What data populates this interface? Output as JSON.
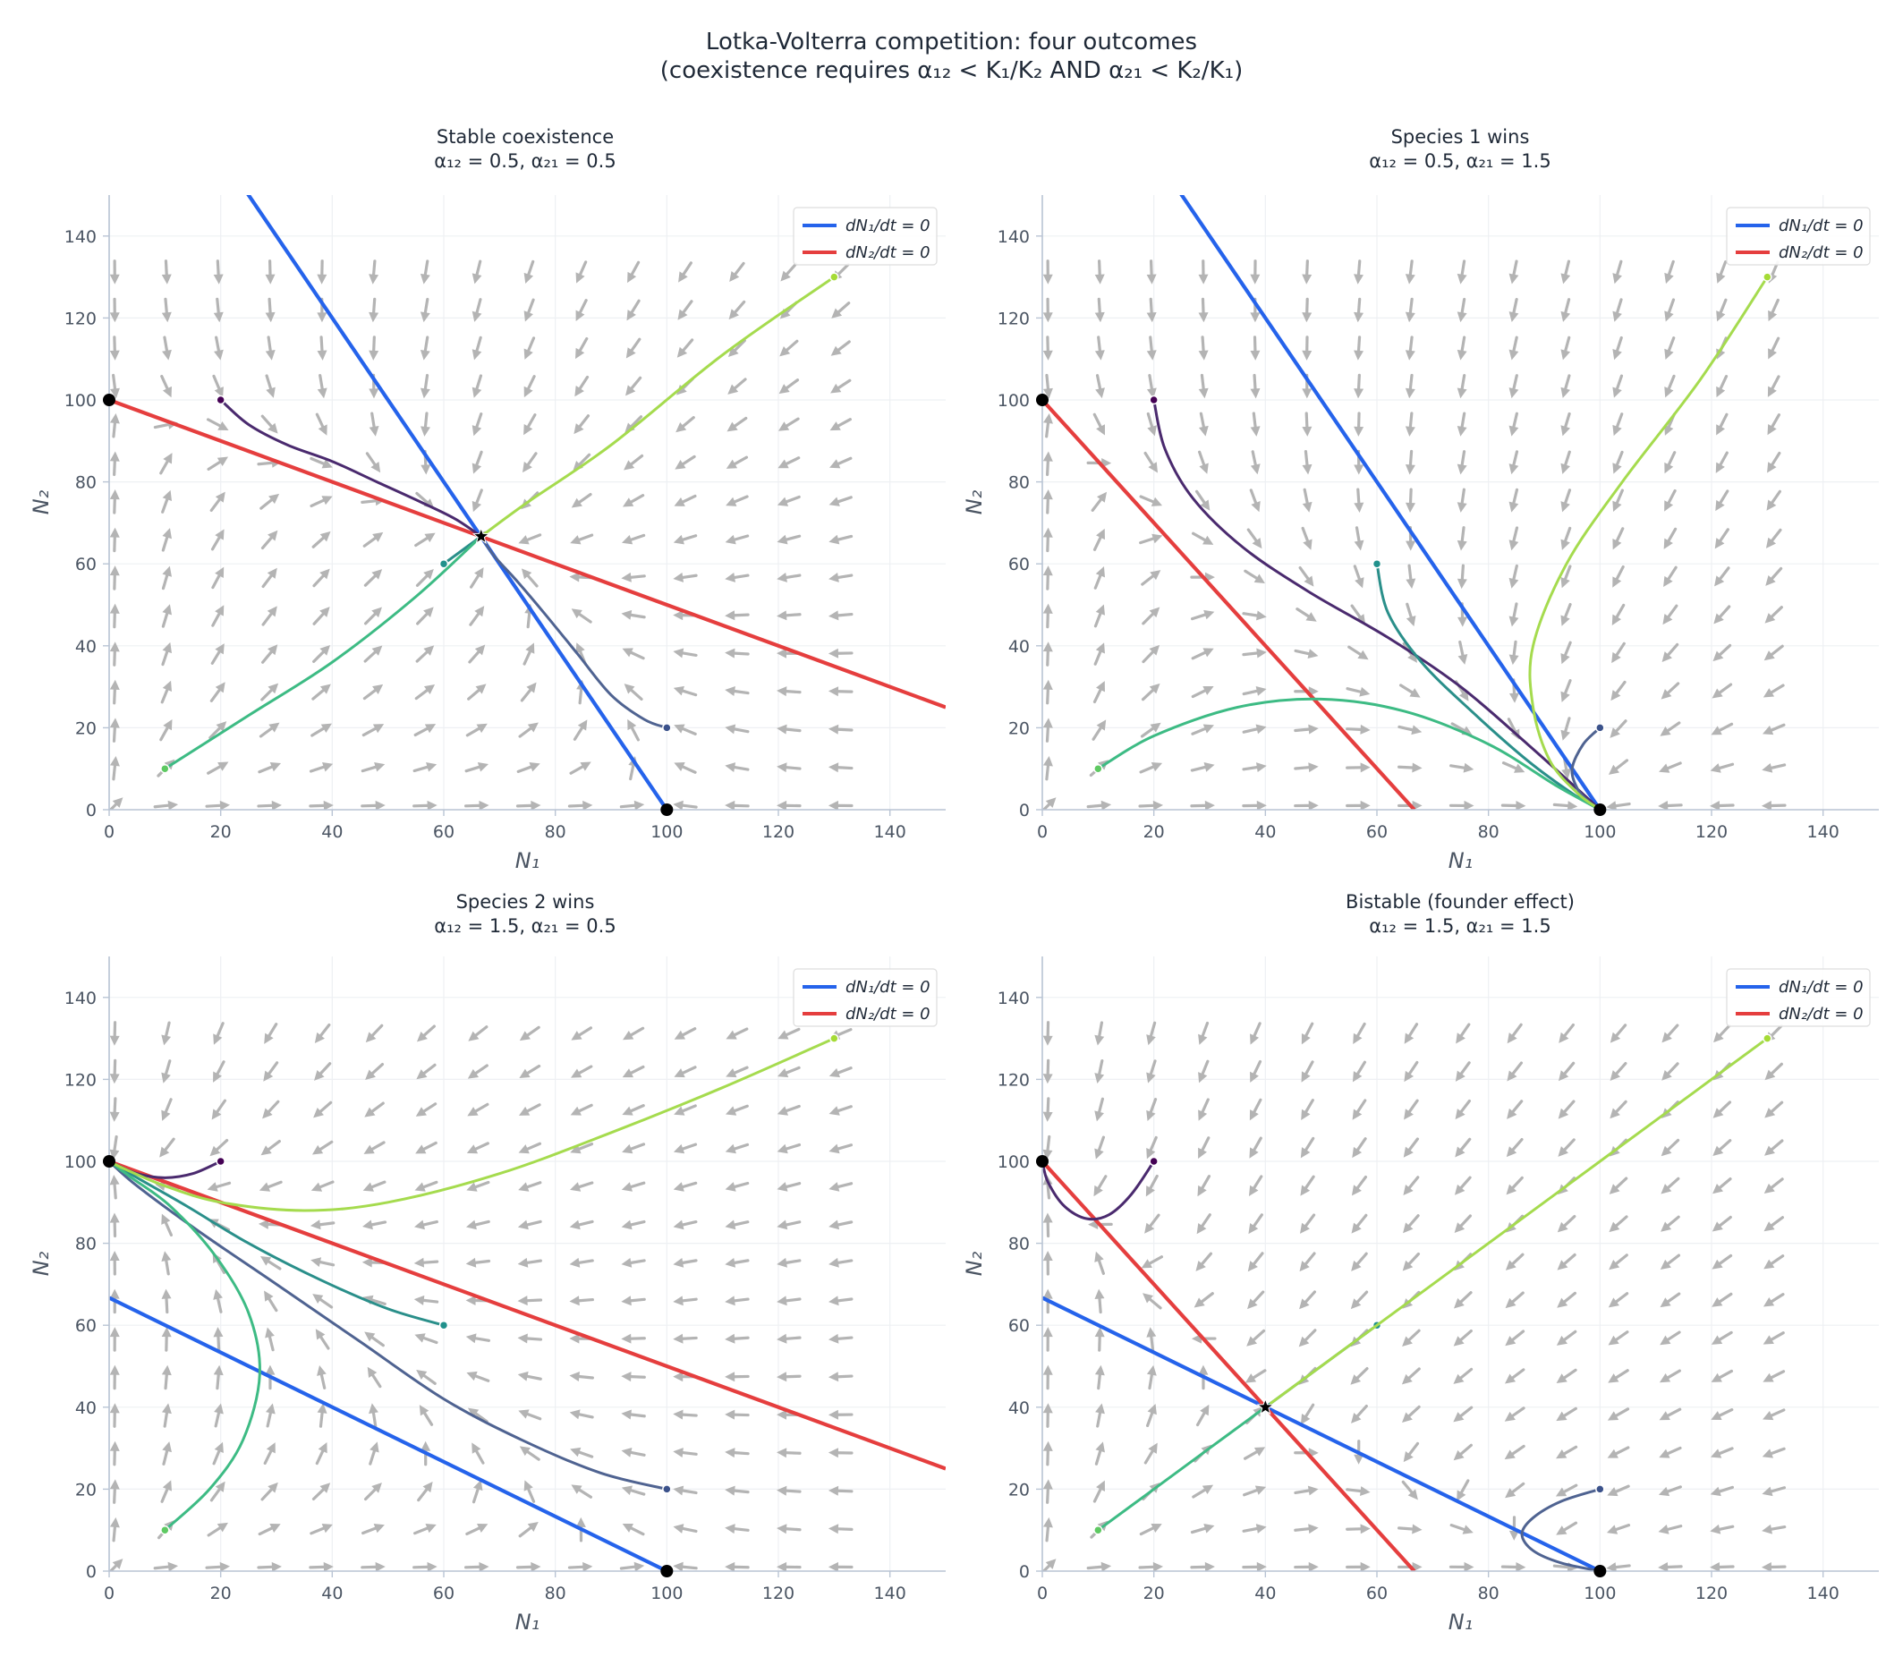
{
  "figure": {
    "title_line1": "Lotka-Volterra competition:  four outcomes",
    "title_line2": "(coexistence requires α₁₂ < K₁/K₂ AND α₂₁ < K₂/K₁)"
  },
  "colors": {
    "nullcline_n1": "#2563eb",
    "nullcline_n2": "#e53e3e",
    "arrows": "#b4b4b4",
    "grid": "#eef0f3",
    "axis": "#b9c4d4",
    "trajectories": [
      "#440154",
      "#3b528b",
      "#21918c",
      "#5ec962",
      "#2fb47c",
      "#a5db36"
    ]
  },
  "chart_data": [
    {
      "type": "line",
      "title": "Stable coexistence",
      "subtitle": "α₁₂ = 0.5,  α₂₁ = 0.5",
      "xlabel": "N₁",
      "ylabel": "N₂",
      "xlim": [
        0,
        150
      ],
      "ylim": [
        0,
        150
      ],
      "xticks": [
        0,
        20,
        40,
        60,
        80,
        100,
        120,
        140
      ],
      "yticks": [
        0,
        20,
        40,
        60,
        80,
        100,
        120,
        140
      ],
      "grid": true,
      "legend_placement": "top-right",
      "alpha12": 0.5,
      "alpha21": 0.5,
      "nullclines": [
        {
          "name": "dN₁/dt = 0",
          "points": [
            [
              0,
              200
            ],
            [
              100,
              0
            ]
          ]
        },
        {
          "name": "dN₂/dt = 0",
          "points": [
            [
              0,
              100
            ],
            [
              150,
              25
            ]
          ]
        }
      ],
      "equilibria": [
        {
          "kind": "unstable",
          "point": [
            0,
            100
          ]
        },
        {
          "kind": "unstable",
          "point": [
            100,
            0
          ]
        },
        {
          "kind": "stable",
          "point": [
            66.7,
            66.7
          ]
        }
      ],
      "trajectories": [
        {
          "start": [
            20,
            100
          ],
          "points": [
            [
              20,
              100
            ],
            [
              25,
              94
            ],
            [
              32,
              89
            ],
            [
              40,
              85
            ],
            [
              48,
              80
            ],
            [
              56,
              75
            ],
            [
              62,
              71
            ],
            [
              66.7,
              66.7
            ]
          ]
        },
        {
          "start": [
            100,
            20
          ],
          "points": [
            [
              100,
              20
            ],
            [
              96,
              22
            ],
            [
              90,
              28
            ],
            [
              84,
              38
            ],
            [
              78,
              48
            ],
            [
              73,
              56
            ],
            [
              69,
              62
            ],
            [
              66.7,
              66.7
            ]
          ]
        },
        {
          "start": [
            60,
            60
          ],
          "points": [
            [
              60,
              60
            ],
            [
              64,
              64
            ],
            [
              66.7,
              66.7
            ]
          ]
        },
        {
          "start": [
            10,
            10
          ],
          "points": [
            [
              10,
              10
            ],
            [
              25,
              23
            ],
            [
              40,
              36
            ],
            [
              55,
              52
            ],
            [
              66.7,
              66.7
            ]
          ]
        },
        {
          "start": [
            130,
            130
          ],
          "points": [
            [
              130,
              130
            ],
            [
              110,
              111
            ],
            [
              90,
              89
            ],
            [
              75,
              75
            ],
            [
              66.7,
              66.7
            ]
          ]
        }
      ]
    },
    {
      "type": "line",
      "title": "Species 1 wins",
      "subtitle": "α₁₂ = 0.5,  α₂₁ = 1.5",
      "xlabel": "N₁",
      "ylabel": "N₂",
      "xlim": [
        0,
        150
      ],
      "ylim": [
        0,
        150
      ],
      "xticks": [
        0,
        20,
        40,
        60,
        80,
        100,
        120,
        140
      ],
      "yticks": [
        0,
        20,
        40,
        60,
        80,
        100,
        120,
        140
      ],
      "grid": true,
      "legend_placement": "top-right",
      "alpha12": 0.5,
      "alpha21": 1.5,
      "nullclines": [
        {
          "name": "dN₁/dt = 0",
          "points": [
            [
              0,
              200
            ],
            [
              100,
              0
            ]
          ]
        },
        {
          "name": "dN₂/dt = 0",
          "points": [
            [
              0,
              100
            ],
            [
              66.7,
              0
            ]
          ]
        }
      ],
      "equilibria": [
        {
          "kind": "unstable",
          "point": [
            0,
            100
          ]
        },
        {
          "kind": "stable",
          "point": [
            100,
            0
          ]
        }
      ],
      "trajectories": [
        {
          "start": [
            20,
            100
          ],
          "points": [
            [
              20,
              100
            ],
            [
              22,
              88
            ],
            [
              27,
              76
            ],
            [
              36,
              64
            ],
            [
              48,
              53
            ],
            [
              62,
              42
            ],
            [
              75,
              30
            ],
            [
              87,
              16
            ],
            [
              96,
              5
            ],
            [
              100,
              0
            ]
          ]
        },
        {
          "start": [
            100,
            20
          ],
          "points": [
            [
              100,
              20
            ],
            [
              97,
              16
            ],
            [
              95,
              10
            ],
            [
              96,
              5
            ],
            [
              98,
              2
            ],
            [
              100,
              0
            ]
          ]
        },
        {
          "start": [
            60,
            60
          ],
          "points": [
            [
              60,
              60
            ],
            [
              62,
              48
            ],
            [
              68,
              36
            ],
            [
              77,
              24
            ],
            [
              87,
              12
            ],
            [
              95,
              4
            ],
            [
              100,
              0
            ]
          ]
        },
        {
          "start": [
            10,
            10
          ],
          "points": [
            [
              10,
              10
            ],
            [
              20,
              18
            ],
            [
              35,
              25
            ],
            [
              50,
              27
            ],
            [
              65,
              24
            ],
            [
              80,
              16
            ],
            [
              92,
              6
            ],
            [
              100,
              0
            ]
          ]
        },
        {
          "start": [
            130,
            130
          ],
          "points": [
            [
              130,
              130
            ],
            [
              118,
              105
            ],
            [
              104,
              80
            ],
            [
              94,
              60
            ],
            [
              88,
              40
            ],
            [
              88,
              25
            ],
            [
              91,
              12
            ],
            [
              96,
              4
            ],
            [
              100,
              0
            ]
          ]
        }
      ]
    },
    {
      "type": "line",
      "title": "Species 2 wins",
      "subtitle": "α₁₂ = 1.5,  α₂₁ = 0.5",
      "xlabel": "N₁",
      "ylabel": "N₂",
      "xlim": [
        0,
        150
      ],
      "ylim": [
        0,
        150
      ],
      "xticks": [
        0,
        20,
        40,
        60,
        80,
        100,
        120,
        140
      ],
      "yticks": [
        0,
        20,
        40,
        60,
        80,
        100,
        120,
        140
      ],
      "grid": true,
      "legend_placement": "top-right",
      "alpha12": 1.5,
      "alpha21": 0.5,
      "nullclines": [
        {
          "name": "dN₁/dt = 0",
          "points": [
            [
              0,
              66.7
            ],
            [
              100,
              0
            ]
          ]
        },
        {
          "name": "dN₂/dt = 0",
          "points": [
            [
              0,
              100
            ],
            [
              150,
              25
            ]
          ]
        }
      ],
      "equilibria": [
        {
          "kind": "stable",
          "point": [
            0,
            100
          ]
        },
        {
          "kind": "unstable",
          "point": [
            100,
            0
          ]
        }
      ],
      "trajectories": [
        {
          "start": [
            20,
            100
          ],
          "points": [
            [
              20,
              100
            ],
            [
              15,
              97
            ],
            [
              10,
              96
            ],
            [
              5,
              97
            ],
            [
              0,
              100
            ]
          ]
        },
        {
          "start": [
            100,
            20
          ],
          "points": [
            [
              100,
              20
            ],
            [
              88,
              24
            ],
            [
              74,
              32
            ],
            [
              60,
              42
            ],
            [
              45,
              56
            ],
            [
              30,
              70
            ],
            [
              16,
              83
            ],
            [
              5,
              94
            ],
            [
              0,
              100
            ]
          ]
        },
        {
          "start": [
            60,
            60
          ],
          "points": [
            [
              60,
              60
            ],
            [
              50,
              64
            ],
            [
              38,
              71
            ],
            [
              25,
              80
            ],
            [
              14,
              89
            ],
            [
              5,
              96
            ],
            [
              0,
              100
            ]
          ]
        },
        {
          "start": [
            10,
            10
          ],
          "points": [
            [
              10,
              10
            ],
            [
              18,
              20
            ],
            [
              24,
              32
            ],
            [
              27,
              48
            ],
            [
              25,
              63
            ],
            [
              19,
              77
            ],
            [
              11,
              89
            ],
            [
              4,
              96
            ],
            [
              0,
              100
            ]
          ]
        },
        {
          "start": [
            130,
            130
          ],
          "points": [
            [
              130,
              130
            ],
            [
              110,
              118
            ],
            [
              90,
              107
            ],
            [
              70,
              97
            ],
            [
              50,
              90
            ],
            [
              35,
              88
            ],
            [
              20,
              90
            ],
            [
              10,
              94
            ],
            [
              3,
              98
            ],
            [
              0,
              100
            ]
          ]
        }
      ]
    },
    {
      "type": "line",
      "title": "Bistable  (founder effect)",
      "subtitle": "α₁₂ = 1.5,  α₂₁ = 1.5",
      "xlabel": "N₁",
      "ylabel": "N₂",
      "xlim": [
        0,
        150
      ],
      "ylim": [
        0,
        150
      ],
      "xticks": [
        0,
        20,
        40,
        60,
        80,
        100,
        120,
        140
      ],
      "yticks": [
        0,
        20,
        40,
        60,
        80,
        100,
        120,
        140
      ],
      "grid": true,
      "legend_placement": "top-right",
      "alpha12": 1.5,
      "alpha21": 1.5,
      "nullclines": [
        {
          "name": "dN₁/dt = 0",
          "points": [
            [
              0,
              66.7
            ],
            [
              100,
              0
            ]
          ]
        },
        {
          "name": "dN₂/dt = 0",
          "points": [
            [
              0,
              100
            ],
            [
              66.7,
              0
            ]
          ]
        }
      ],
      "equilibria": [
        {
          "kind": "stable",
          "point": [
            0,
            100
          ]
        },
        {
          "kind": "stable",
          "point": [
            100,
            0
          ]
        },
        {
          "kind": "saddle",
          "point": [
            40,
            40
          ]
        }
      ],
      "trajectories": [
        {
          "start": [
            20,
            100
          ],
          "points": [
            [
              20,
              100
            ],
            [
              16,
              92
            ],
            [
              12,
              87
            ],
            [
              8,
              86
            ],
            [
              4,
              89
            ],
            [
              1,
              95
            ],
            [
              0,
              100
            ]
          ]
        },
        {
          "start": [
            100,
            20
          ],
          "points": [
            [
              100,
              20
            ],
            [
              93,
              17
            ],
            [
              88,
              13
            ],
            [
              86,
              9
            ],
            [
              88,
              5
            ],
            [
              93,
              2
            ],
            [
              100,
              0
            ]
          ]
        },
        {
          "start": [
            60,
            60
          ],
          "points": [
            [
              60,
              60
            ],
            [
              52,
              52
            ],
            [
              45,
              45
            ],
            [
              40.5,
              40.5
            ]
          ]
        },
        {
          "start": [
            10,
            10
          ],
          "points": [
            [
              10,
              10
            ],
            [
              20,
              20
            ],
            [
              30,
              30
            ],
            [
              39.5,
              39.5
            ]
          ]
        },
        {
          "start": [
            130,
            130
          ],
          "points": [
            [
              130,
              130
            ],
            [
              110,
              110
            ],
            [
              90,
              90
            ],
            [
              70,
              70
            ],
            [
              55,
              55
            ],
            [
              41,
              41
            ]
          ]
        }
      ]
    }
  ]
}
